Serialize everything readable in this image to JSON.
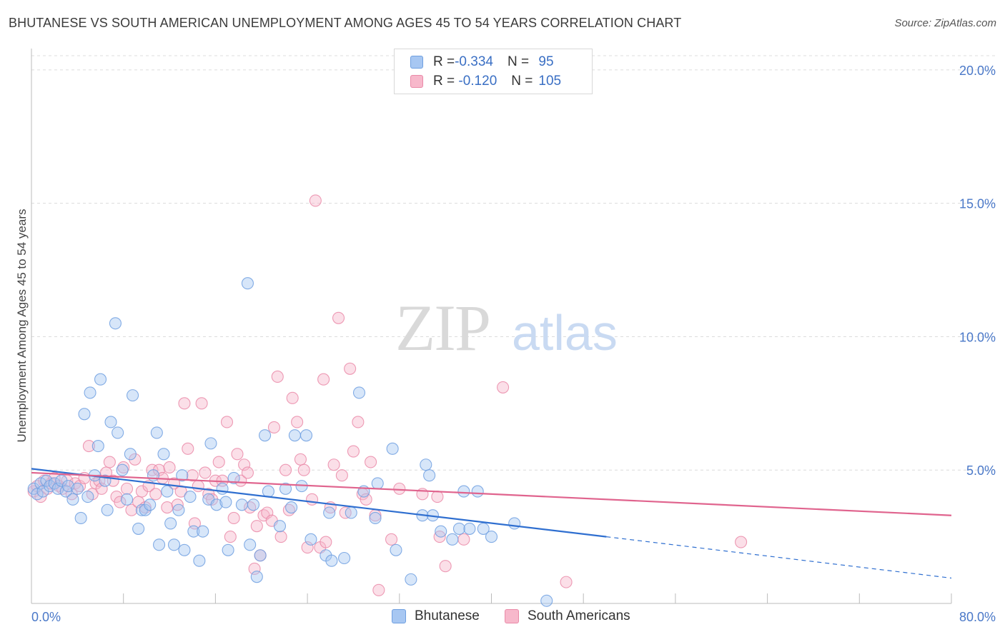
{
  "title": "BHUTANESE VS SOUTH AMERICAN UNEMPLOYMENT AMONG AGES 45 TO 54 YEARS CORRELATION CHART",
  "source": "Source: ZipAtlas.com",
  "watermark": {
    "zip": "ZIP",
    "atlas": "atlas"
  },
  "legend": {
    "rows": [
      {
        "r_label": "R = ",
        "r_value": "-0.334",
        "n_label": "N = ",
        "n_value": " 95",
        "color": "#a7c7f2",
        "border": "#6f9fe0"
      },
      {
        "r_label": "R = ",
        "r_value": " -0.120",
        "n_label": "N = ",
        "n_value": "105",
        "color": "#f7b8cb",
        "border": "#ea8aa8"
      }
    ]
  },
  "bottom_legend": {
    "bhutanese": "Bhutanese",
    "south_americans": "South Americans"
  },
  "chart_data": {
    "type": "scatter",
    "ylabel": "Unemployment Among Ages 45 to 54 years",
    "xlabel": "",
    "x_min_label": "0.0%",
    "x_max_label": "80.0%",
    "y_tick_labels": [
      "5.0%",
      "10.0%",
      "15.0%",
      "20.0%"
    ],
    "xlim": [
      0,
      80
    ],
    "ylim": [
      0,
      20.8
    ],
    "y_ticks": [
      5,
      10,
      15,
      20
    ],
    "grid": true,
    "legend_position": "top-center",
    "series": [
      {
        "name": "Bhutanese",
        "color": "#6f9fe0",
        "fill": "#a7c7f2",
        "trend": {
          "x0": 0,
          "y0": 5.05,
          "x1": 50,
          "y1": 2.5,
          "dash_to_x": 80,
          "dash_to_y": 0.95
        },
        "points": [
          [
            0.2,
            4.3
          ],
          [
            0.5,
            4.1
          ],
          [
            0.8,
            4.5
          ],
          [
            1.0,
            4.2
          ],
          [
            1.3,
            4.6
          ],
          [
            1.6,
            4.4
          ],
          [
            2.0,
            4.5
          ],
          [
            2.3,
            4.3
          ],
          [
            2.6,
            4.6
          ],
          [
            3.0,
            4.2
          ],
          [
            3.2,
            4.4
          ],
          [
            3.6,
            3.9
          ],
          [
            4.0,
            4.3
          ],
          [
            4.3,
            3.2
          ],
          [
            4.6,
            7.1
          ],
          [
            4.9,
            4.0
          ],
          [
            5.1,
            7.9
          ],
          [
            5.5,
            4.8
          ],
          [
            5.8,
            5.9
          ],
          [
            6.0,
            8.4
          ],
          [
            6.4,
            4.6
          ],
          [
            6.6,
            3.5
          ],
          [
            6.9,
            6.8
          ],
          [
            7.3,
            10.5
          ],
          [
            7.5,
            6.4
          ],
          [
            7.9,
            5.0
          ],
          [
            8.3,
            3.9
          ],
          [
            8.6,
            5.6
          ],
          [
            8.8,
            7.8
          ],
          [
            9.3,
            2.8
          ],
          [
            9.6,
            3.5
          ],
          [
            9.9,
            3.5
          ],
          [
            10.3,
            3.7
          ],
          [
            10.6,
            4.8
          ],
          [
            10.9,
            6.4
          ],
          [
            11.1,
            2.2
          ],
          [
            11.5,
            5.6
          ],
          [
            11.8,
            4.2
          ],
          [
            12.1,
            3.0
          ],
          [
            12.4,
            2.2
          ],
          [
            12.8,
            3.5
          ],
          [
            13.1,
            4.8
          ],
          [
            13.3,
            2.0
          ],
          [
            13.8,
            4.0
          ],
          [
            14.1,
            2.7
          ],
          [
            14.6,
            1.6
          ],
          [
            14.9,
            2.7
          ],
          [
            15.4,
            3.9
          ],
          [
            15.6,
            6.0
          ],
          [
            16.1,
            3.7
          ],
          [
            16.6,
            4.3
          ],
          [
            16.9,
            3.8
          ],
          [
            17.1,
            2.0
          ],
          [
            17.6,
            4.7
          ],
          [
            18.3,
            3.7
          ],
          [
            18.8,
            12.0
          ],
          [
            19.0,
            2.2
          ],
          [
            19.3,
            3.7
          ],
          [
            19.6,
            1.0
          ],
          [
            19.9,
            1.8
          ],
          [
            20.3,
            6.3
          ],
          [
            20.6,
            4.2
          ],
          [
            21.6,
            2.9
          ],
          [
            22.1,
            4.3
          ],
          [
            22.6,
            3.6
          ],
          [
            22.9,
            6.3
          ],
          [
            23.5,
            4.4
          ],
          [
            23.9,
            6.3
          ],
          [
            24.3,
            2.4
          ],
          [
            25.6,
            1.8
          ],
          [
            25.9,
            3.4
          ],
          [
            26.1,
            1.6
          ],
          [
            27.2,
            1.7
          ],
          [
            27.8,
            3.4
          ],
          [
            28.5,
            7.9
          ],
          [
            28.9,
            4.2
          ],
          [
            29.9,
            3.2
          ],
          [
            30.1,
            4.5
          ],
          [
            31.4,
            5.8
          ],
          [
            31.7,
            2.0
          ],
          [
            33.0,
            0.9
          ],
          [
            34.0,
            3.3
          ],
          [
            34.3,
            5.2
          ],
          [
            34.6,
            4.8
          ],
          [
            34.9,
            3.3
          ],
          [
            35.6,
            2.7
          ],
          [
            36.6,
            2.4
          ],
          [
            37.2,
            2.8
          ],
          [
            37.6,
            4.2
          ],
          [
            38.1,
            2.8
          ],
          [
            38.8,
            4.2
          ],
          [
            39.3,
            2.8
          ],
          [
            40.0,
            2.5
          ],
          [
            42.0,
            3.0
          ],
          [
            44.8,
            0.1
          ]
        ]
      },
      {
        "name": "South Americans",
        "color": "#ea8aa8",
        "fill": "#f7b8cb",
        "trend": {
          "x0": 0,
          "y0": 4.9,
          "x1": 80,
          "y1": 3.3
        },
        "points": [
          [
            0.2,
            4.2
          ],
          [
            0.5,
            4.4
          ],
          [
            0.8,
            4.0
          ],
          [
            1.1,
            4.6
          ],
          [
            1.4,
            4.3
          ],
          [
            1.7,
            4.5
          ],
          [
            2.0,
            4.7
          ],
          [
            2.4,
            4.4
          ],
          [
            2.7,
            4.3
          ],
          [
            3.1,
            4.6
          ],
          [
            3.5,
            4.1
          ],
          [
            3.8,
            4.5
          ],
          [
            4.2,
            4.4
          ],
          [
            4.6,
            4.7
          ],
          [
            5.0,
            5.9
          ],
          [
            5.3,
            4.1
          ],
          [
            5.6,
            4.5
          ],
          [
            5.9,
            4.6
          ],
          [
            6.1,
            4.3
          ],
          [
            6.5,
            4.9
          ],
          [
            6.8,
            5.3
          ],
          [
            7.1,
            4.6
          ],
          [
            7.4,
            4.0
          ],
          [
            7.7,
            3.8
          ],
          [
            8.0,
            5.1
          ],
          [
            8.3,
            4.3
          ],
          [
            8.7,
            3.5
          ],
          [
            9.0,
            5.4
          ],
          [
            9.3,
            3.8
          ],
          [
            9.6,
            4.2
          ],
          [
            9.9,
            3.6
          ],
          [
            10.2,
            4.4
          ],
          [
            10.5,
            5.0
          ],
          [
            10.8,
            4.1
          ],
          [
            11.1,
            5.0
          ],
          [
            11.4,
            4.7
          ],
          [
            11.8,
            3.6
          ],
          [
            12.0,
            5.1
          ],
          [
            12.4,
            4.5
          ],
          [
            12.7,
            3.7
          ],
          [
            13.0,
            4.2
          ],
          [
            13.3,
            7.5
          ],
          [
            13.6,
            5.8
          ],
          [
            14.0,
            4.8
          ],
          [
            14.2,
            3.0
          ],
          [
            14.5,
            4.4
          ],
          [
            14.8,
            7.5
          ],
          [
            15.1,
            4.9
          ],
          [
            15.4,
            4.1
          ],
          [
            15.7,
            3.9
          ],
          [
            16.0,
            4.6
          ],
          [
            16.3,
            5.3
          ],
          [
            16.6,
            4.6
          ],
          [
            17.0,
            6.8
          ],
          [
            17.3,
            2.5
          ],
          [
            17.6,
            3.2
          ],
          [
            17.9,
            5.6
          ],
          [
            18.2,
            4.6
          ],
          [
            18.5,
            5.2
          ],
          [
            18.8,
            4.9
          ],
          [
            19.0,
            3.6
          ],
          [
            19.4,
            1.3
          ],
          [
            19.6,
            2.9
          ],
          [
            19.9,
            1.8
          ],
          [
            20.2,
            3.3
          ],
          [
            20.5,
            3.4
          ],
          [
            20.9,
            3.1
          ],
          [
            21.1,
            6.6
          ],
          [
            21.4,
            8.5
          ],
          [
            21.7,
            2.5
          ],
          [
            22.1,
            5.0
          ],
          [
            22.4,
            3.5
          ],
          [
            22.7,
            7.7
          ],
          [
            23.1,
            6.8
          ],
          [
            23.4,
            5.4
          ],
          [
            23.7,
            5.0
          ],
          [
            24.0,
            2.1
          ],
          [
            24.4,
            3.9
          ],
          [
            24.7,
            15.1
          ],
          [
            25.1,
            2.1
          ],
          [
            25.4,
            8.4
          ],
          [
            25.6,
            2.3
          ],
          [
            26.0,
            3.6
          ],
          [
            26.3,
            5.2
          ],
          [
            26.7,
            10.7
          ],
          [
            27.0,
            4.8
          ],
          [
            27.3,
            3.4
          ],
          [
            27.7,
            8.8
          ],
          [
            28.0,
            5.7
          ],
          [
            28.4,
            6.8
          ],
          [
            28.8,
            4.1
          ],
          [
            29.1,
            3.9
          ],
          [
            29.5,
            5.3
          ],
          [
            29.9,
            3.3
          ],
          [
            30.2,
            0.5
          ],
          [
            31.3,
            2.4
          ],
          [
            32.0,
            4.3
          ],
          [
            34.0,
            4.1
          ],
          [
            35.3,
            4.0
          ],
          [
            35.5,
            2.5
          ],
          [
            36.0,
            1.4
          ],
          [
            37.6,
            2.4
          ],
          [
            41.0,
            8.1
          ],
          [
            46.5,
            0.8
          ],
          [
            61.7,
            2.3
          ]
        ]
      }
    ]
  }
}
